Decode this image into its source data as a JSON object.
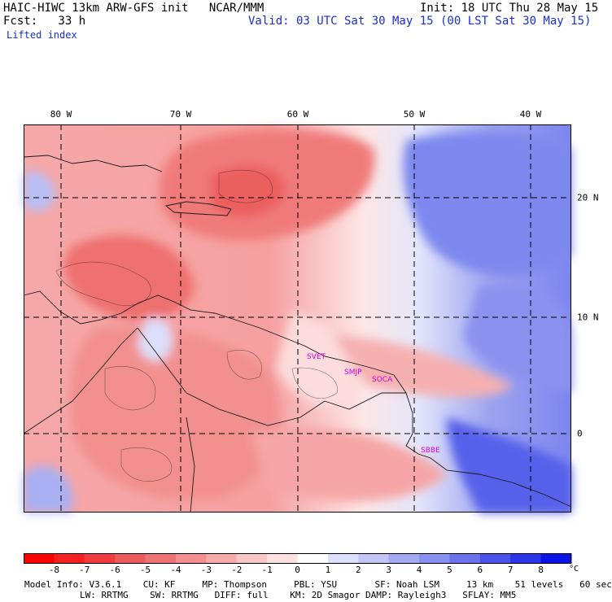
{
  "header": {
    "model_line": "HAIC-HIWC 13km ARW-GFS init   NCAR/MMM",
    "init_line": "Init: 18 UTC Thu 28 May 15",
    "fcst_line": "Fcst:   33 h",
    "valid_line": "Valid: 03 UTC Sat 30 May 15 (00 LST Sat 30 May 15)",
    "field_name": "Lifted index"
  },
  "map": {
    "lon_labels": [
      "80 W",
      "70 W",
      "60 W",
      "50 W",
      "40 W"
    ],
    "lat_labels": [
      "20 N",
      "10 N",
      "0"
    ],
    "stations": [
      "SVET",
      "SMJP",
      "SOCA",
      "SBBE"
    ]
  },
  "colorbar": {
    "labels": [
      "-8",
      "-7",
      "-6",
      "-5",
      "-4",
      "-3",
      "-2",
      "-1",
      "0",
      "1",
      "2",
      "3",
      "4",
      "5",
      "6",
      "7",
      "8"
    ],
    "unit": "°C",
    "colors": [
      "#ff0000",
      "#f52020",
      "#f03c3c",
      "#ec5a5a",
      "#ee7474",
      "#f28e8e",
      "#f6aaaa",
      "#fac6c6",
      "#fde0e0",
      "#ffffff",
      "#dde0fb",
      "#c2c6f6",
      "#a4aaf2",
      "#8890f0",
      "#6a72ec",
      "#4a54ea",
      "#2a36e8",
      "#0a14e6"
    ]
  },
  "footer": {
    "line1": "Model Info: V3.6.1    CU: KF     MP: Thompson     PBL: YSU       SF: Noah LSM     13 km    51 levels   60 sec",
    "line2": "LW: RRTMG    SW: RRTMG   DIFF: full    KM: 2D Smagor DAMP: Rayleigh3   SFLAY: MM5"
  }
}
